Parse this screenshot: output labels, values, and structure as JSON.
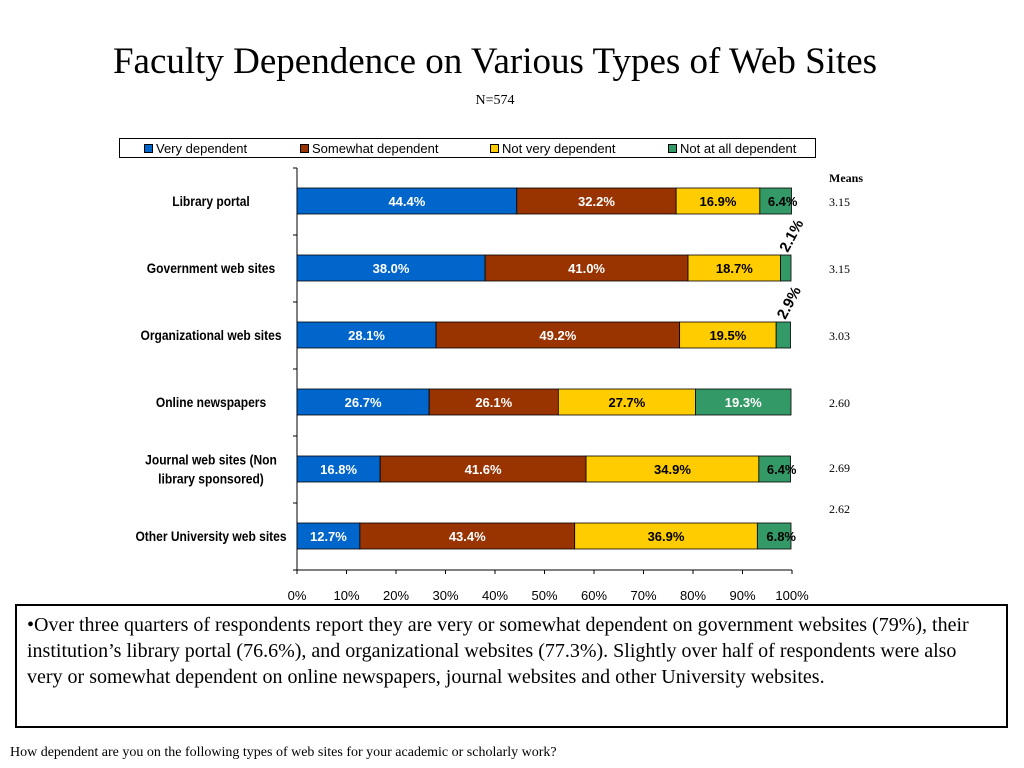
{
  "page": {
    "title": "Faculty Dependence on Various Types of Web Sites",
    "subtitle": "N=574",
    "means_header": "Means",
    "means": [
      "3.15",
      "3.15",
      "3.03",
      "2.60",
      "2.69",
      "2.62"
    ],
    "summary_text": "•Over three quarters of respondents report they are very or somewhat dependent on government websites (79%), their institution’s library portal (76.6%), and organizational websites (77.3%).  Slightly over half of respondents were also very or somewhat dependent on online newspapers, journal websites and other University websites.",
    "footnote": "How dependent are you on the following types of web sites for your academic or scholarly work?"
  },
  "chart_data": {
    "type": "bar",
    "orientation": "horizontal",
    "stacked": true,
    "categories": [
      [
        "Library portal"
      ],
      [
        "Government web sites"
      ],
      [
        "Organizational web sites"
      ],
      [
        "Online newspapers"
      ],
      [
        "Journal web sites (Non",
        "library sponsored)"
      ],
      [
        "Other University web sites"
      ]
    ],
    "series": [
      {
        "name": "Very dependent",
        "color": "#0066cc",
        "values": [
          44.4,
          38.0,
          28.1,
          26.7,
          16.8,
          12.7
        ],
        "labels": [
          "44.4%",
          "38.0%",
          "28.1%",
          "26.7%",
          "16.8%",
          "12.7%"
        ]
      },
      {
        "name": "Somewhat dependent",
        "color": "#993300",
        "values": [
          32.2,
          41.0,
          49.2,
          26.1,
          41.6,
          43.4
        ],
        "labels": [
          "32.2%",
          "41.0%",
          "49.2%",
          "26.1%",
          "41.6%",
          "43.4%"
        ]
      },
      {
        "name": "Not very dependent",
        "color": "#ffcc00",
        "values": [
          16.9,
          18.7,
          19.5,
          27.7,
          34.9,
          36.9
        ],
        "labels": [
          "16.9%",
          "18.7%",
          "19.5%",
          "27.7%",
          "34.9%",
          "36.9%"
        ]
      },
      {
        "name": "Not at all dependent",
        "color": "#339966",
        "values": [
          6.4,
          2.1,
          2.9,
          19.3,
          6.4,
          6.8
        ],
        "labels": [
          "6.4%",
          "2.1%",
          "2.9%",
          "19.3%",
          "6.4%",
          "6.8%"
        ]
      }
    ],
    "xlim": [
      0,
      100
    ],
    "xticks": [
      "0%",
      "10%",
      "20%",
      "30%",
      "40%",
      "50%",
      "60%",
      "70%",
      "80%",
      "90%",
      "100%"
    ],
    "legend": "top",
    "grid": false
  }
}
